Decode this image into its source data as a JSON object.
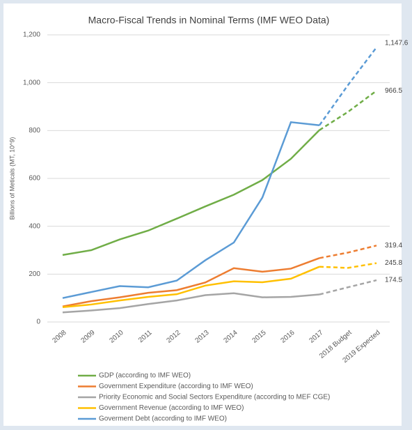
{
  "chart_data": {
    "type": "line",
    "title": "Macro-Fiscal Trends in Nominal Terms (IMF WEO Data)",
    "y_label": "Billions of Meticals (MT, 10^9)",
    "categories": [
      "2008",
      "2009",
      "2010",
      "2011",
      "2012",
      "2013",
      "2014",
      "2015",
      "2016",
      "2017",
      "2018 Budget",
      "2019 Expected"
    ],
    "forecast_from_index": 9,
    "ylim": [
      0,
      1200
    ],
    "yticks": [
      0,
      200,
      400,
      600,
      800,
      {
        "value": 1000,
        "label": "1,000"
      },
      {
        "value": 1200,
        "label": "1,200"
      }
    ],
    "grid": true,
    "legend": "bottom",
    "series": [
      {
        "name": "GDP (according to IMF WEO)",
        "color": "#70ad47",
        "values": [
          280,
          300,
          345,
          382,
          432,
          483,
          532,
          593,
          682,
          802,
          878,
          966.5
        ],
        "value_labels": [
          null,
          null,
          null,
          null,
          null,
          null,
          null,
          null,
          null,
          null,
          null,
          "966.5"
        ]
      },
      {
        "name": "Government Expenditure (according to IMF WEO)",
        "color": "#ed7d31",
        "values": [
          65,
          87,
          103,
          122,
          133,
          165,
          225,
          210,
          223,
          267,
          290,
          319.4
        ],
        "value_labels": [
          null,
          null,
          null,
          null,
          null,
          null,
          null,
          null,
          null,
          null,
          null,
          "319.4"
        ]
      },
      {
        "name": "Priority Economic and Social Sectors Expenditure (according to MEF CGE)",
        "color": "#a5a5a5",
        "values": [
          40,
          48,
          58,
          75,
          90,
          112,
          120,
          103,
          105,
          115,
          145,
          174.5
        ],
        "value_labels": [
          null,
          null,
          null,
          null,
          null,
          null,
          null,
          null,
          null,
          null,
          null,
          "174.5"
        ]
      },
      {
        "name": "Government Revenue (according to IMF WEO)",
        "color": "#ffc000",
        "values": [
          62,
          73,
          90,
          105,
          116,
          152,
          170,
          166,
          181,
          231,
          226,
          245.8
        ],
        "value_labels": [
          null,
          null,
          null,
          null,
          null,
          null,
          null,
          null,
          null,
          null,
          null,
          "245.8"
        ]
      },
      {
        "name": "Goverment Debt (according to IMF WEO)",
        "color": "#5b9bd5",
        "values": [
          100,
          125,
          150,
          145,
          173,
          258,
          332,
          520,
          835,
          822,
          990,
          1147.6
        ],
        "value_labels": [
          null,
          null,
          null,
          null,
          null,
          null,
          null,
          null,
          null,
          null,
          null,
          "1,147.6"
        ]
      }
    ]
  }
}
